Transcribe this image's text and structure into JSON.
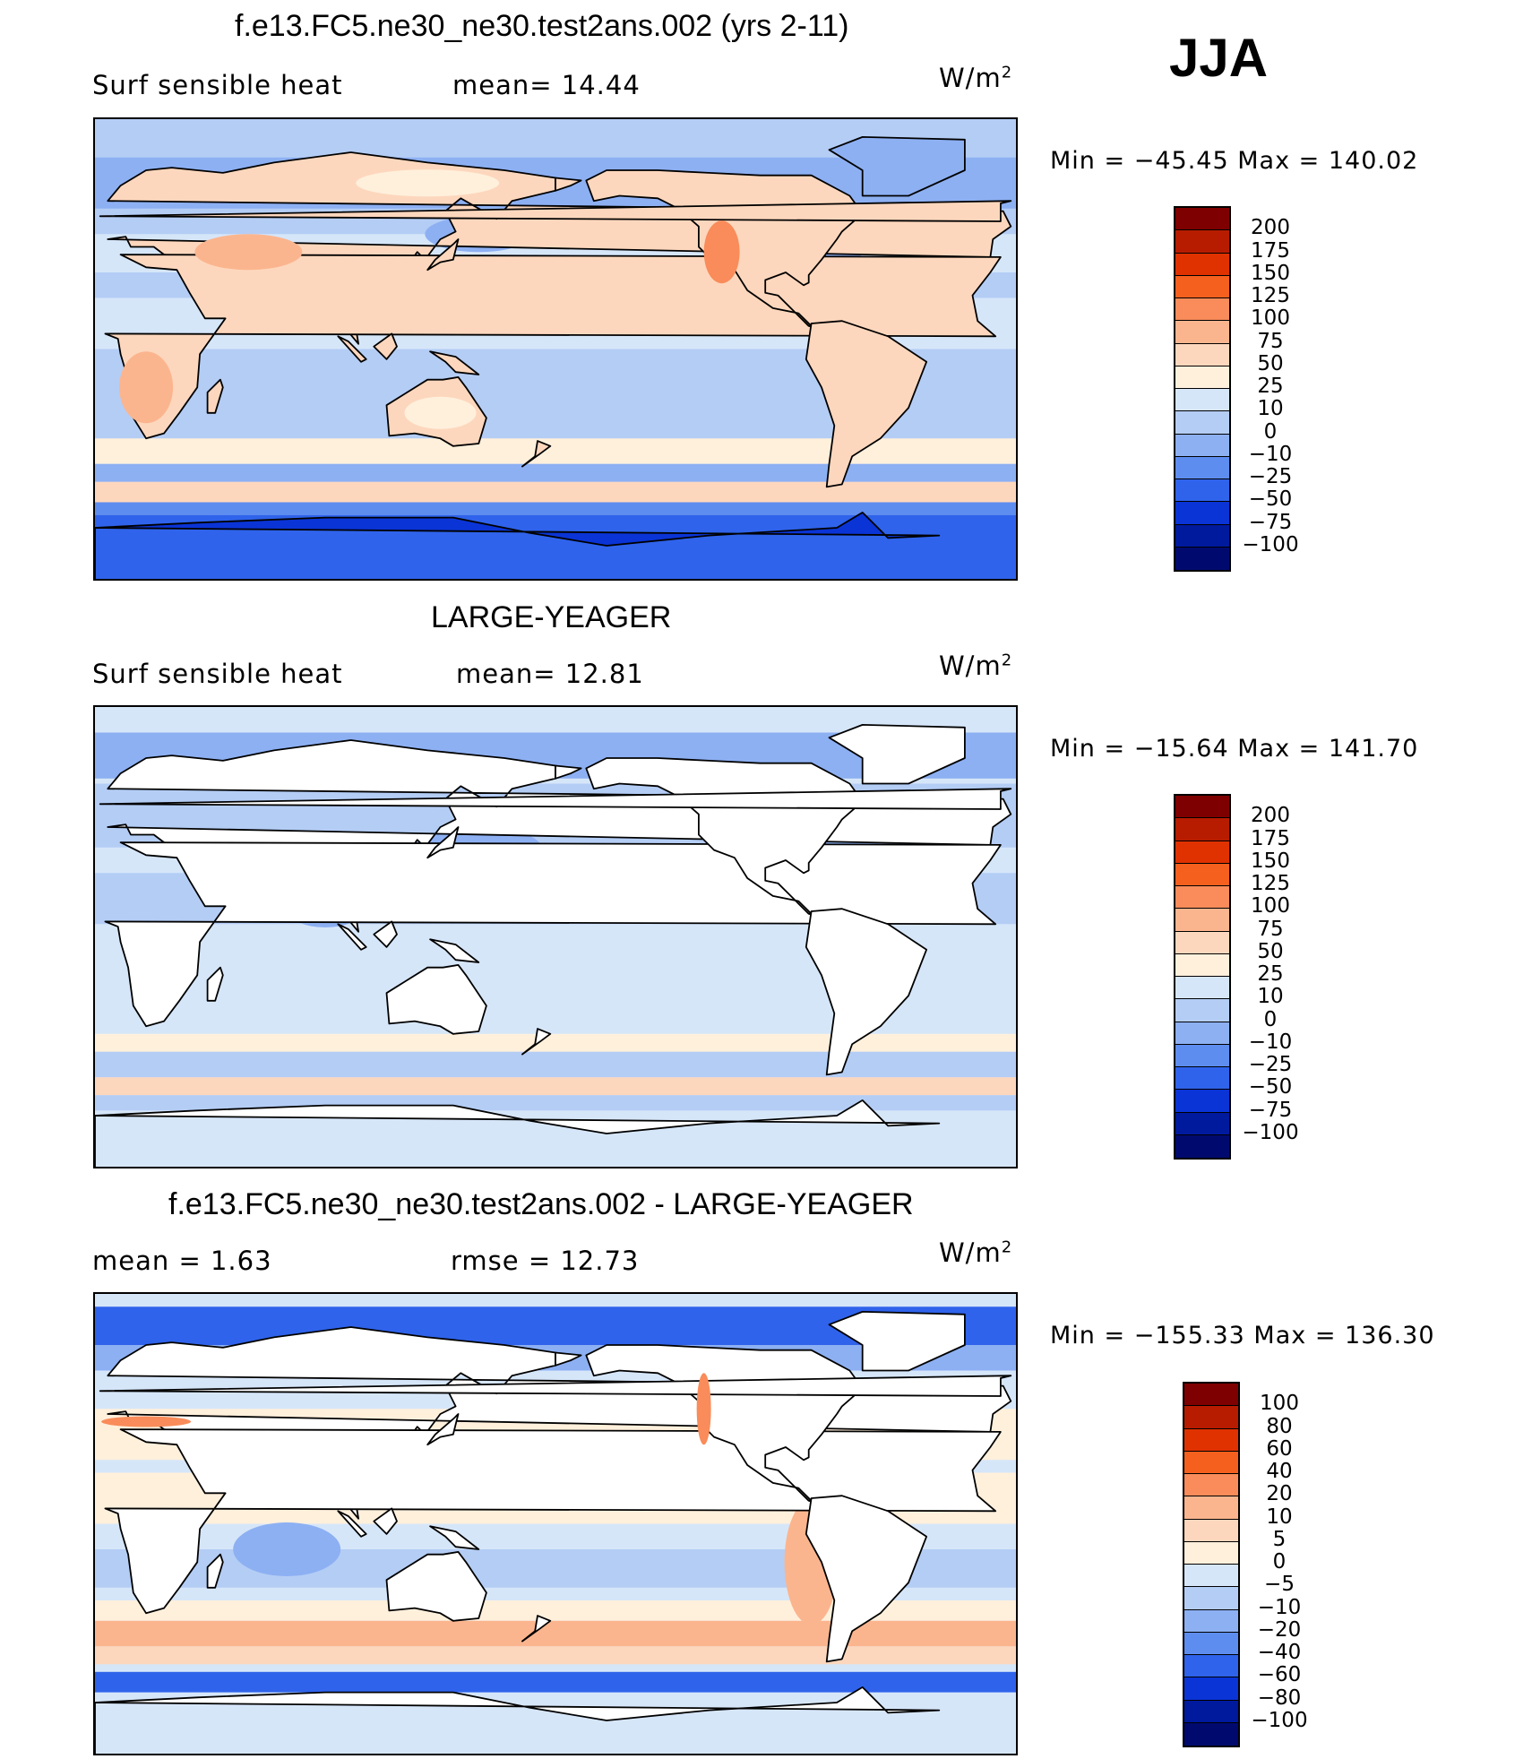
{
  "season": "JJA",
  "units": "W/m",
  "units_exp": "2",
  "panels": [
    {
      "title": "f.e13.FC5.ne30_ne30.test2ans.002 (yrs 2-11)",
      "left_label": "Surf  sensible  heat",
      "right_label": "mean=   14.44",
      "min_label": "Min",
      "min_value": "−45.45",
      "max_label": "Max",
      "max_value": "140.02",
      "colorbar": {
        "labels": [
          "200",
          "175",
          "150",
          "125",
          "100",
          "75",
          "50",
          "25",
          "10",
          "0",
          "−10",
          "−25",
          "−50",
          "−75",
          "−100"
        ],
        "colors": [
          "#7f0000",
          "#b71c00",
          "#e03200",
          "#f5601e",
          "#f98c5a",
          "#fbb58e",
          "#fdd7bd",
          "#fff0dc",
          "#d6e6f9",
          "#b4cdf5",
          "#8db0f3",
          "#5e8df0",
          "#2f63eb",
          "#0a34d6",
          "#001a9e",
          "#000a6e"
        ]
      },
      "map_field": "model"
    },
    {
      "title": "LARGE-YEAGER",
      "left_label": "Surf  sensible  heat",
      "right_label": "mean=   12.81",
      "min_label": "Min",
      "min_value": "−15.64",
      "max_label": "Max",
      "max_value": "141.70",
      "colorbar": {
        "labels": [
          "200",
          "175",
          "150",
          "125",
          "100",
          "75",
          "50",
          "25",
          "10",
          "0",
          "−10",
          "−25",
          "−50",
          "−75",
          "−100"
        ],
        "colors": [
          "#7f0000",
          "#b71c00",
          "#e03200",
          "#f5601e",
          "#f98c5a",
          "#fbb58e",
          "#fdd7bd",
          "#fff0dc",
          "#d6e6f9",
          "#b4cdf5",
          "#8db0f3",
          "#5e8df0",
          "#2f63eb",
          "#0a34d6",
          "#001a9e",
          "#000a6e"
        ]
      },
      "map_field": "obs"
    },
    {
      "title": "f.e13.FC5.ne30_ne30.test2ans.002 - LARGE-YEAGER",
      "left_label": "mean =     1.63",
      "right_label": "rmse  =    12.73",
      "min_label": "Min",
      "min_value": "−155.33",
      "max_label": "Max",
      "max_value": "136.30",
      "colorbar": {
        "labels": [
          "100",
          "80",
          "60",
          "40",
          "20",
          "10",
          "5",
          "0",
          "−5",
          "−10",
          "−20",
          "−40",
          "−60",
          "−80",
          "−100"
        ],
        "colors": [
          "#7f0000",
          "#b71c00",
          "#e03200",
          "#f5601e",
          "#f98c5a",
          "#fbb58e",
          "#fdd7bd",
          "#fff0dc",
          "#d6e6f9",
          "#b4cdf5",
          "#8db0f3",
          "#5e8df0",
          "#2f63eb",
          "#0a34d6",
          "#001a9e",
          "#000a6e"
        ]
      },
      "map_field": "diff"
    }
  ]
}
